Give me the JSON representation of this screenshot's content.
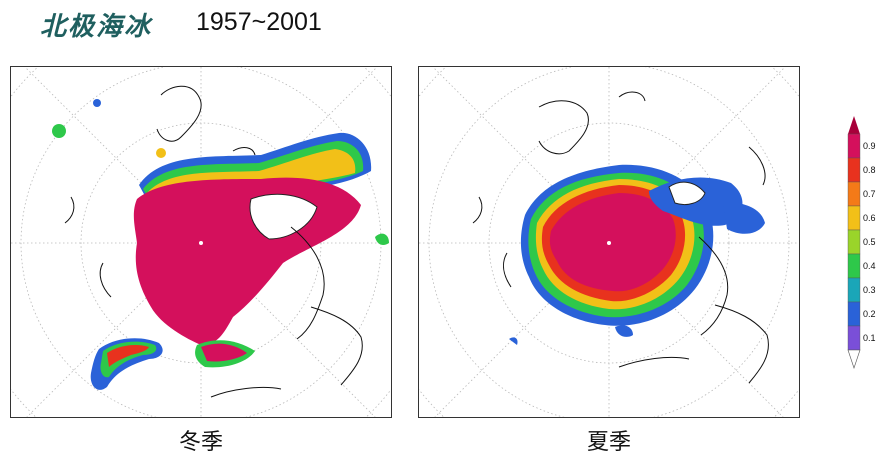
{
  "title": {
    "chinese": "北极海冰",
    "years": "1957~2001"
  },
  "panels": [
    {
      "caption": "冬季",
      "season": "winter"
    },
    {
      "caption": "夏季",
      "season": "summer"
    }
  ],
  "colorbar": {
    "labels": [
      "0.9",
      "0.8",
      "0.7",
      "0.6",
      "0.5",
      "0.4",
      "0.3",
      "0.2",
      "0.1"
    ],
    "colors": [
      "#d4105c",
      "#e8321e",
      "#f47a18",
      "#f2c018",
      "#9ad42a",
      "#2ec84a",
      "#1aa6b8",
      "#2a62d8",
      "#7a4fd8"
    ]
  }
}
